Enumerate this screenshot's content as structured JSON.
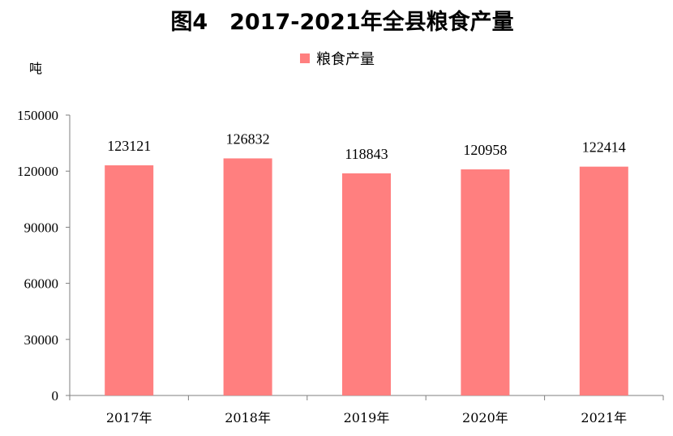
{
  "chart_data": {
    "type": "bar",
    "title": "图4　2017-2021年全县粮食产量",
    "ylabel": "吨",
    "xlabel": "",
    "categories": [
      "2017年",
      "2018年",
      "2019年",
      "2020年",
      "2021年"
    ],
    "series": [
      {
        "name": "粮食产量",
        "values": [
          123121,
          126832,
          118843,
          120958,
          122414
        ],
        "color": "#FF7F7F"
      }
    ],
    "ylim": [
      0,
      150000
    ],
    "yticks": [
      "0",
      "30000",
      "60000",
      "90000",
      "120000",
      "150000"
    ],
    "data_labels": [
      "123121",
      "126832",
      "118843",
      "120958",
      "122414"
    ],
    "legend_position": "top-center",
    "grid": false
  }
}
